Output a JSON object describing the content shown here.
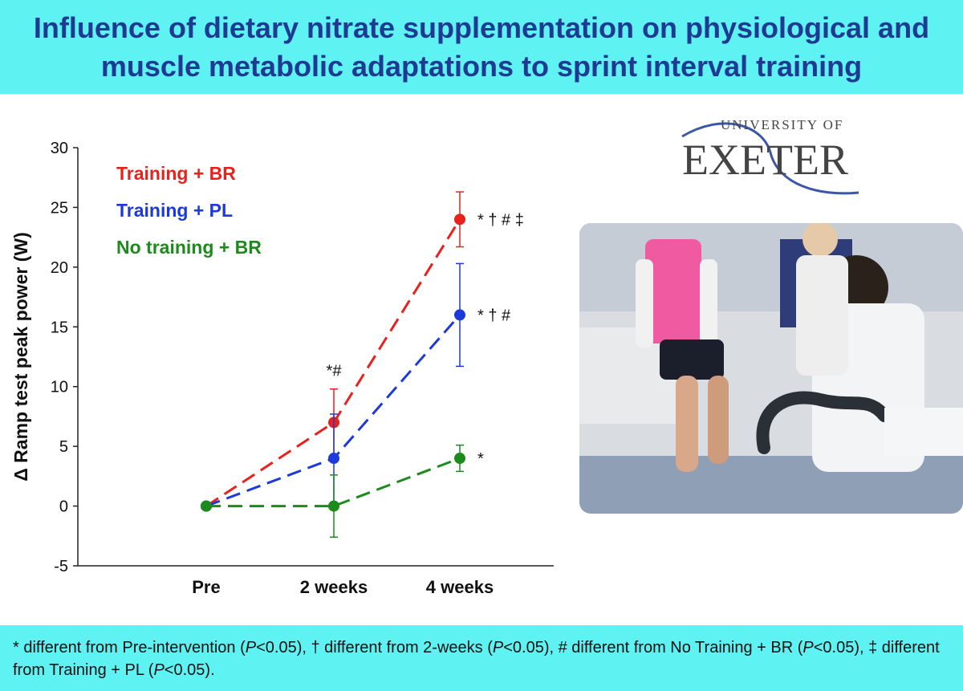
{
  "header": {
    "title": "Influence of dietary nitrate supplementation on physiological and muscle metabolic adaptations to sprint interval training"
  },
  "logo": {
    "line1": "UNIVERSITY OF",
    "line2": "EXETER"
  },
  "photo": {
    "icon": "lab-photo-icon"
  },
  "footer": {
    "p1": "* different from Pre-intervention (",
    "p1i": "P",
    "p2": "<0.05), † different from 2-weeks (",
    "p2i": "P",
    "p3": "<0.05), # different from No Training + BR (",
    "p3i": "P",
    "p4": "<0.05), ‡ different from Training + PL (",
    "p4i": "P",
    "p5": "<0.05)."
  },
  "chart_data": {
    "type": "line",
    "title": "",
    "xlabel": "",
    "ylabel": "Δ Ramp test peak power (W)",
    "categories": [
      "Pre",
      "2 weeks",
      "4 weeks"
    ],
    "ylim": [
      -5,
      30
    ],
    "yticks": [
      -5,
      0,
      5,
      10,
      15,
      20,
      25,
      30
    ],
    "grid": false,
    "legend_position": "top-left",
    "series": [
      {
        "name": "Training + BR",
        "color": "#e8211d",
        "values": [
          0,
          7,
          24
        ],
        "errors": [
          0,
          2.8,
          2.3
        ],
        "annotations": [
          "",
          "*#",
          "* † # ‡"
        ]
      },
      {
        "name": "Training + PL",
        "color": "#1c39d9",
        "values": [
          0,
          4,
          16
        ],
        "errors": [
          0,
          3.7,
          4.3
        ],
        "annotations": [
          "",
          "",
          "* † #"
        ]
      },
      {
        "name": "No training + BR",
        "color": "#1c8a1c",
        "values": [
          0,
          0,
          4
        ],
        "errors": [
          0,
          2.6,
          1.1
        ],
        "annotations": [
          "",
          "",
          "*"
        ]
      }
    ]
  }
}
